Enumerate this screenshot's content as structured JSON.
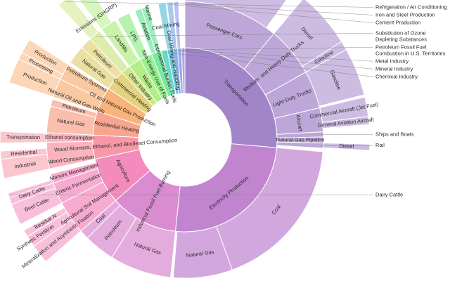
{
  "chart_data": {
    "type": "sunburst",
    "value_unit": "share of total (%)",
    "colors": {
      "Transportation": "#a285c9",
      "Electricity Production": "#c185d0",
      "Industrial Fossil Fuel Burning": "#d98ccf",
      "Agriculture": "#f38bbd",
      "Wood Biomass, Ethanol, and Biodiesel Consumption": "#f897a6",
      "Residential Heating": "#f8a58f",
      "Oil and Natural Gas Production": "#f9b47c",
      "Commercial Heating": "#e3d27f",
      "Other Industry": "#cfe58a",
      "Waste": "#b4ee88",
      "Non-Energy Use of Fuels": "#98f08e",
      "International Bunker Fuels": "#76e8a2",
      "Chemical Industry": "#6cd8c6",
      "Coal Mining and Handling": "#6cc6dc",
      "Mineral Industry": "#86b3ea",
      "Metal Industry": "#9ca8e9",
      "Petroleum Fossil Fuel Combustion in U.S. Territories": "#b3a4e6"
    },
    "sectors": [
      {
        "label": "Transportation",
        "value": 26.4,
        "children": [
          {
            "label": "Passenger Cars",
            "value": 11.1,
            "children": [
              {
                "label": "",
                "value": 10.0
              }
            ]
          },
          {
            "label": "Medium- and Heavy-Duty Trucks",
            "value": 5.8,
            "children": [
              {
                "label": "Diesel",
                "value": 5.0
              },
              {
                "label": "Gasoline",
                "value": 0.8
              }
            ]
          },
          {
            "label": "Light-Duty Trucks",
            "value": 4.4,
            "children": [
              {
                "label": "Gasoline",
                "value": 4.2
              }
            ]
          },
          {
            "label": "Aircraft",
            "value": 2.8,
            "children": [
              {
                "label": "Commercial Aircraft (Jet Fuel)",
                "value": 1.7
              },
              {
                "label": "General Aviation Aircraft",
                "value": 0.7
              }
            ]
          },
          {
            "label": "Ships and Boats",
            "value": 0.6
          },
          {
            "label": "Natural Gas Pipeline",
            "value": 0.7
          },
          {
            "label": "Rail",
            "value": 0.6,
            "children": [
              {
                "label": "Diesel",
                "value": 0.55
              }
            ]
          }
        ]
      },
      {
        "label": "Electricity Production",
        "value": 25.3,
        "children": [
          {
            "label": "Coal",
            "value": 18.1
          },
          {
            "label": "Natural Gas",
            "value": 6.9
          }
        ]
      },
      {
        "label": "Industrial Fossil Fuel Burning",
        "value": 11.9,
        "children": [
          {
            "label": "Natural Gas",
            "value": 7.2
          },
          {
            "label": "Petroleum",
            "value": 3.6
          },
          {
            "label": "Coal",
            "value": 1.1
          }
        ]
      },
      {
        "label": "Agriculture",
        "value": 8.1,
        "children": [
          {
            "label": "Agricultural Soil Management",
            "value": 3.9,
            "children": [
              {
                "label": "Mineralization and Asymbiotic Fixation",
                "value": 1.7
              },
              {
                "label": "Synthetic Fertilizer",
                "value": 1.0
              },
              {
                "label": "Residue N",
                "value": 0.6
              }
            ]
          },
          {
            "label": "Enteric Fermentation",
            "value": 2.5,
            "children": [
              {
                "label": "Beef Cattle",
                "value": 1.9
              },
              {
                "label": "Dairy Cattle",
                "value": 0.7
              }
            ]
          },
          {
            "label": "Manure Management",
            "value": 1.1,
            "children": [
              {
                "label": "Dairy Cattle",
                "value": 0.4
              }
            ]
          }
        ]
      },
      {
        "label": "Wood Biomass, Ethanol, and Biodiesel Consumption",
        "value": 4.2,
        "children": [
          {
            "label": "Wood Consumption",
            "value": 3.1,
            "children": [
              {
                "label": "Industrial",
                "value": 1.7
              },
              {
                "label": "Residential",
                "value": 0.7
              }
            ]
          },
          {
            "label": "Ethanol consumption",
            "value": 1.1,
            "children": [
              {
                "label": "Transportation",
                "value": 1.0
              }
            ]
          }
        ]
      },
      {
        "label": "Residential Heating",
        "value": 4.2,
        "children": [
          {
            "label": "Natural Gas",
            "value": 3.1
          },
          {
            "label": "Petroleum",
            "value": 0.8
          }
        ]
      },
      {
        "label": "Oil and Natural Gas Production",
        "value": 4.4,
        "children": [
          {
            "label": "Natural Oil and Gas Wells",
            "value": 2.2,
            "children": [
              {
                "label": "Production",
                "value": 2.2
              }
            ]
          },
          {
            "label": "Petroleum Systems",
            "value": 1.9,
            "children": [
              {
                "label": "Processing",
                "value": 0.6
              },
              {
                "label": "Production",
                "value": 1.3
              }
            ]
          }
        ]
      },
      {
        "label": "Commercial Heating",
        "value": 3.6,
        "children": [
          {
            "label": "Natural Gas",
            "value": 2.2
          },
          {
            "label": "Petroleum",
            "value": 1.4
          }
        ]
      },
      {
        "label": "Other Industry",
        "value": 1.7,
        "children": [
          {
            "label": "Substitution of Ozone Depleting Substances",
            "value": 1.4,
            "children": [
              {
                "label": "Refrigeration / Air Conditioning",
                "value": 1.25
              }
            ]
          }
        ]
      },
      {
        "label": "Waste",
        "value": 2.2,
        "children": [
          {
            "label": "Landfills",
            "value": 1.9,
            "children": [
              {
                "label": "Emissions (GHGRP)",
                "value": 1.4
              }
            ]
          }
        ]
      },
      {
        "label": "Non-Energy Use of Fuels",
        "value": 2.2,
        "children": [
          {
            "label": "LPG",
            "value": 1.5
          }
        ]
      },
      {
        "label": "International Bunker Fuels",
        "value": 1.7,
        "children": [
          {
            "label": "Aviation",
            "value": 0.8
          },
          {
            "label": "Marine",
            "value": 0.8
          }
        ]
      },
      {
        "label": "Chemical Industry",
        "value": 1.1
      },
      {
        "label": "Coal Mining and Handling",
        "value": 1.0,
        "children": [
          {
            "label": "Coal Mining",
            "value": 0.9
          }
        ]
      },
      {
        "label": "Mineral Industry",
        "value": 0.8,
        "children": [
          {
            "label": "Cement Production",
            "value": 0.7
          }
        ]
      },
      {
        "label": "Metal Industry",
        "value": 0.7,
        "children": [
          {
            "label": "Iron and Steel Production",
            "value": 0.55
          }
        ]
      },
      {
        "label": "Petroleum Fossil Fuel Combustion in U.S. Territories",
        "value": 0.6
      }
    ]
  }
}
